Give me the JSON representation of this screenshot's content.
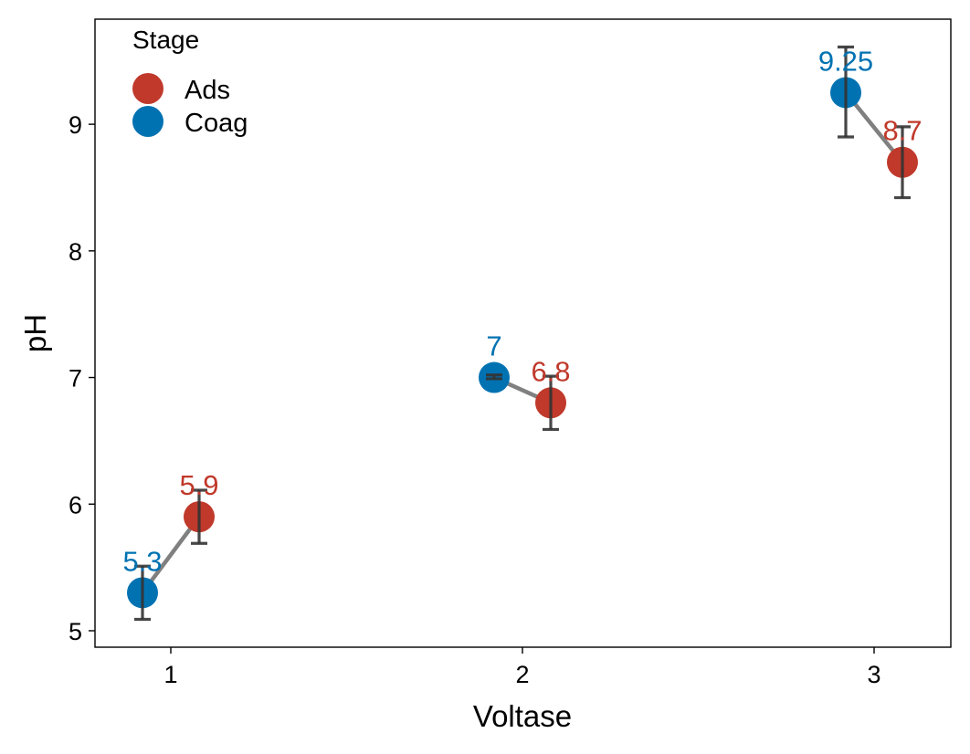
{
  "chart_data": {
    "type": "scatter",
    "title": "",
    "xlabel": "Voltase",
    "ylabel": "pH",
    "categories": [
      "1",
      "2",
      "3"
    ],
    "yticks": [
      "5",
      "6",
      "7",
      "8",
      "9"
    ],
    "ylim": [
      4.87,
      9.83
    ],
    "grid": false,
    "legend": {
      "title": "Stage",
      "position": "top-left",
      "entries": [
        "Ads",
        "Coag"
      ]
    },
    "series": [
      {
        "name": "Coag",
        "color": "#0072b2",
        "values": [
          5.3,
          7.0,
          9.25
        ],
        "labels": [
          "5.3",
          "7",
          "9.25"
        ],
        "error_low": [
          5.09,
          6.99,
          8.9
        ],
        "error_high": [
          5.51,
          7.02,
          9.61
        ]
      },
      {
        "name": "Ads",
        "color": "#c0392b",
        "values": [
          5.9,
          6.8,
          8.7
        ],
        "labels": [
          "5.9",
          "6.8",
          "8.7"
        ],
        "error_low": [
          5.69,
          6.59,
          8.42
        ],
        "error_high": [
          6.11,
          7.01,
          8.98
        ]
      }
    ],
    "connector_color": "#808080",
    "errorbar_color": "#333333"
  }
}
